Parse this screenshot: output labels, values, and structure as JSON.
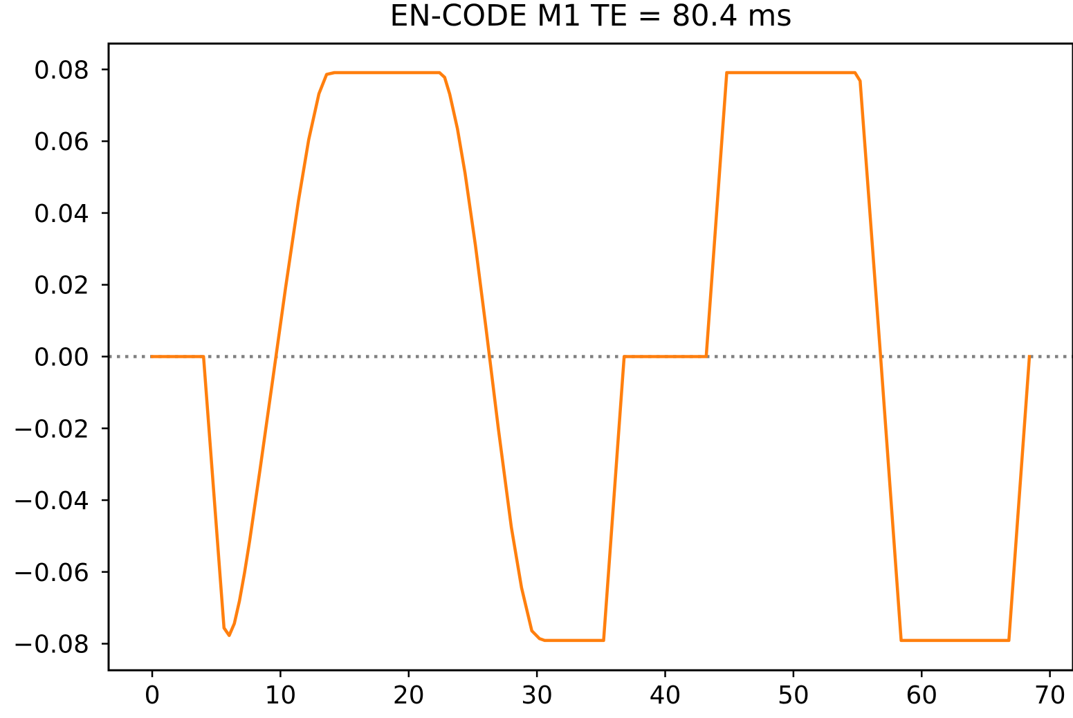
{
  "chart_data": {
    "type": "line",
    "title": "EN-CODE M1  TE = 80.4 ms",
    "xlabel": "",
    "ylabel": "",
    "xlim": [
      -3.4,
      71.8
    ],
    "ylim": [
      -0.0874,
      0.0872
    ],
    "x_ticks": [
      0,
      10,
      20,
      30,
      40,
      50,
      60,
      70
    ],
    "y_ticks": [
      0.08,
      0.06,
      0.04,
      0.02,
      0.0,
      -0.02,
      -0.04,
      -0.06,
      -0.08
    ],
    "x_tick_labels": [
      "0",
      "10",
      "20",
      "30",
      "40",
      "50",
      "60",
      "70"
    ],
    "y_tick_labels": [
      "0.08",
      "0.06",
      "0.04",
      "0.02",
      "0.00",
      "−0.02",
      "−0.04",
      "−0.06",
      "−0.08"
    ],
    "grid": false,
    "legend": "none",
    "colors": {
      "line": "#ff7f0e",
      "zero_line": "#808080",
      "axes": "#000000"
    },
    "reference_line": {
      "y": 0,
      "style": "dotted"
    },
    "series": [
      {
        "x": [
          0,
          4.0,
          5.6,
          6.0,
          6.4,
          6.8,
          7.2,
          7.6,
          8.4,
          9.4,
          10.4,
          11.4,
          12.2,
          13.0,
          13.6,
          14.2,
          14.6,
          22.4,
          22.8,
          23.2,
          23.8,
          24.4,
          25.2,
          26.0,
          27.0,
          28.0,
          28.8,
          29.6,
          30.2,
          30.6,
          31.0,
          35.2,
          36.8,
          43.2,
          44.8,
          54.8,
          55.2,
          56.8,
          58.4,
          58.8,
          66.8,
          68.4
        ],
        "y": [
          0,
          0,
          -0.0756,
          -0.0777,
          -0.0744,
          -0.0681,
          -0.0602,
          -0.0513,
          -0.0317,
          -0.0063,
          0.0192,
          0.0434,
          0.0604,
          0.0732,
          0.0786,
          0.0791,
          0.0791,
          0.0791,
          0.0778,
          0.0731,
          0.0635,
          0.051,
          0.031,
          0.0087,
          -0.0203,
          -0.0475,
          -0.0644,
          -0.0764,
          -0.0786,
          -0.0791,
          -0.0791,
          -0.0791,
          0,
          0,
          0.0791,
          0.0791,
          0.0768,
          0,
          -0.0791,
          -0.0791,
          -0.0791,
          0
        ]
      }
    ]
  }
}
